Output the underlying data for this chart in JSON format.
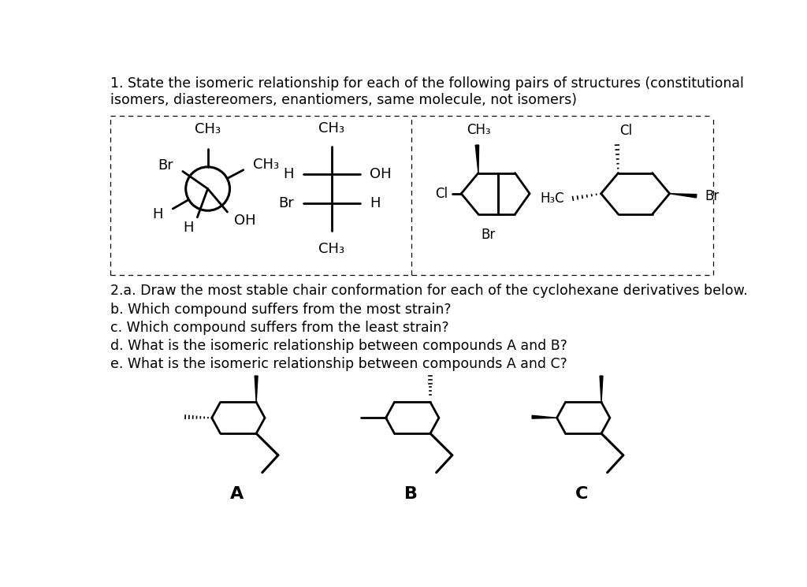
{
  "title1": "1. State the isomeric relationship for each of the following pairs of structures (constitutional\nisomers, diastereomers, enantiomers, same molecule, not isomers)",
  "title2_lines": [
    "2.a. Draw the most stable chair conformation for each of the cyclohexane derivatives below.",
    "b. Which compound suffers from the most strain?",
    "c. Which compound suffers from the least strain?",
    "d. What is the isomeric relationship between compounds A and B?",
    "e. What is the isomeric relationship between compounds A and C?"
  ],
  "bg": "#ffffff"
}
